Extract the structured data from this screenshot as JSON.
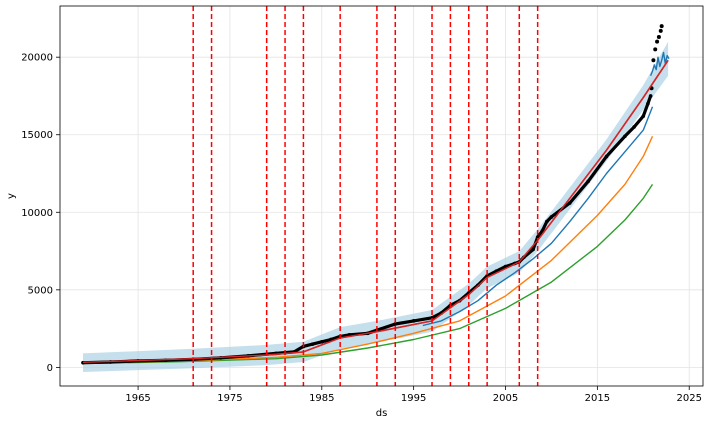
{
  "chart_data": {
    "type": "line",
    "title": "",
    "xlabel": "ds",
    "ylabel": "y",
    "xlim": [
      1956.5,
      2026.5
    ],
    "ylim": [
      -1200,
      23300
    ],
    "grid": true,
    "x_ticks": [
      1965,
      1975,
      1985,
      1995,
      2005,
      2015,
      2025
    ],
    "y_ticks": [
      0,
      5000,
      10000,
      15000,
      20000
    ],
    "x_tick_labels": [
      "1965",
      "1975",
      "1985",
      "1995",
      "2005",
      "2015",
      "2025"
    ],
    "y_tick_labels": [
      "0",
      "5000",
      "10000",
      "15000",
      "20000"
    ],
    "changepoints": [
      1971,
      1973,
      1979,
      1981,
      1983,
      1987,
      1991,
      1993,
      1997,
      1999,
      2001,
      2003,
      2006.5,
      2008.5
    ],
    "colors": {
      "uncertainty": "#a6cee3",
      "trend": "#d62728",
      "changepoint": "#ff0000",
      "observed": "#000000",
      "forecast": "#1f77b4",
      "series_blue": "#1f77b4",
      "series_orange": "#ff7f0e",
      "series_green": "#2ca02c"
    },
    "series": [
      {
        "role": "observed",
        "x": [
          1959,
          1962,
          1965,
          1968,
          1971,
          1974,
          1977,
          1980,
          1982,
          1983,
          1984,
          1985,
          1986,
          1987,
          1988,
          1990,
          1991,
          1993,
          1995,
          1997,
          1998,
          1999,
          2000,
          2001,
          2002,
          2003,
          2004,
          2005,
          2006,
          2006.5,
          2007,
          2008,
          2008.5,
          2009,
          2009.5,
          2010,
          2012,
          2014,
          2016,
          2018,
          2019,
          2020,
          2020.5,
          2020.8
        ],
        "y": [
          300,
          350,
          420,
          460,
          520,
          620,
          750,
          900,
          1000,
          1350,
          1500,
          1650,
          1800,
          2000,
          2100,
          2200,
          2400,
          2800,
          3000,
          3200,
          3500,
          4000,
          4300,
          4800,
          5300,
          5900,
          6200,
          6500,
          6700,
          6800,
          7100,
          7600,
          8400,
          8800,
          9400,
          9700,
          10600,
          12000,
          13600,
          14900,
          15500,
          16200,
          17000,
          17500
        ]
      },
      {
        "role": "observed-outliers",
        "x": [
          2020.9,
          2021.1,
          2021.3,
          2021.5,
          2021.7,
          2021.9,
          2022.0
        ],
        "y": [
          18000,
          19800,
          20500,
          21000,
          21300,
          21700,
          22000
        ]
      },
      {
        "role": "trend",
        "x": [
          1959,
          1971,
          1979,
          1983,
          1987,
          1991,
          1997,
          2001,
          2003,
          2006.5,
          2008.5,
          2012,
          2016,
          2020,
          2022.7
        ],
        "y": [
          330,
          560,
          800,
          1000,
          1900,
          2300,
          3000,
          4700,
          5800,
          6800,
          8200,
          10900,
          14000,
          17400,
          19800
        ]
      },
      {
        "role": "blue-line",
        "x": [
          1996,
          1998,
          2000,
          2002,
          2004,
          2006,
          2008,
          2010,
          2012,
          2014,
          2016,
          2018,
          2020,
          2021
        ],
        "y": [
          2700,
          3000,
          3600,
          4300,
          5300,
          6100,
          7000,
          8000,
          9400,
          10900,
          12500,
          13900,
          15300,
          16800
        ]
      },
      {
        "role": "orange-line",
        "x": [
          1959,
          1970,
          1980,
          1985,
          1990,
          1995,
          2000,
          2005,
          2010,
          2015,
          2018,
          2020,
          2021
        ],
        "y": [
          280,
          420,
          650,
          900,
          1500,
          2200,
          3000,
          4600,
          6900,
          9800,
          11800,
          13600,
          14900
        ]
      },
      {
        "role": "green-line",
        "x": [
          1959,
          1970,
          1980,
          1985,
          1990,
          1995,
          2000,
          2005,
          2010,
          2015,
          2018,
          2020,
          2021
        ],
        "y": [
          250,
          380,
          560,
          800,
          1250,
          1800,
          2500,
          3800,
          5500,
          7800,
          9500,
          10900,
          11800
        ]
      },
      {
        "role": "forecast",
        "x": [
          2020.8,
          2021.0,
          2021.2,
          2021.4,
          2021.6,
          2021.8,
          2022.0,
          2022.2,
          2022.4,
          2022.6,
          2022.8
        ],
        "y": [
          18800,
          19100,
          19500,
          19200,
          20000,
          19400,
          19800,
          20300,
          19600,
          20100,
          19900
        ]
      }
    ],
    "uncertainty_band": {
      "x": [
        1959,
        1971,
        1979,
        1983,
        1987,
        1991,
        1997,
        2001,
        2003,
        2006.5,
        2008.5,
        2012,
        2016,
        2020,
        2022.7
      ],
      "lower": [
        -300,
        -50,
        150,
        350,
        1200,
        1600,
        2300,
        4000,
        5100,
        6100,
        7500,
        10200,
        13300,
        16600,
        18800
      ],
      "upper": [
        900,
        1200,
        1450,
        1650,
        2600,
        3000,
        3700,
        5400,
        6500,
        7500,
        8900,
        11600,
        14700,
        18200,
        21000
      ]
    }
  }
}
